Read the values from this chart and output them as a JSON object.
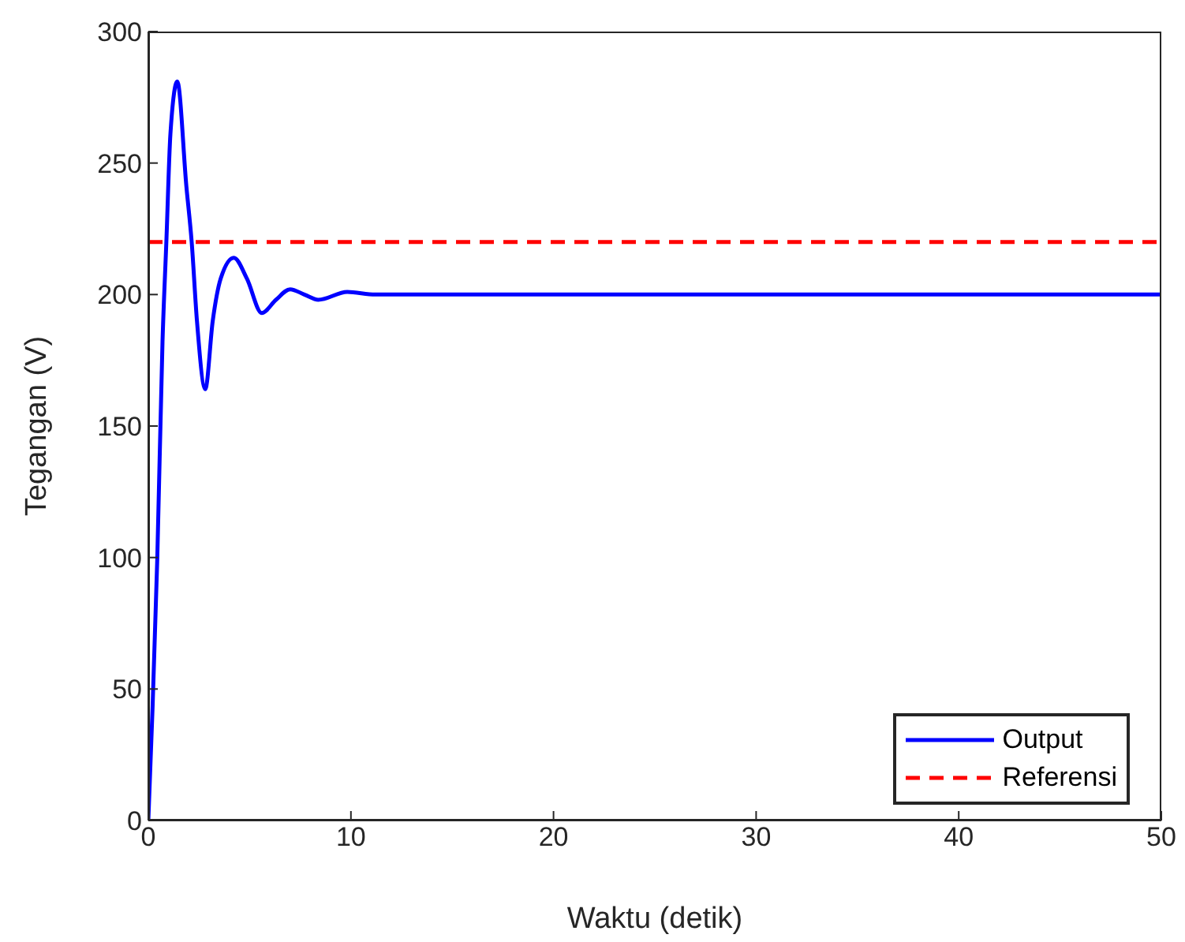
{
  "chart_data": {
    "type": "line",
    "xlabel": "Waktu (detik)",
    "ylabel": "Tegangan (V)",
    "xlim": [
      0,
      50
    ],
    "xticks": [
      0,
      10,
      20,
      30,
      40,
      50
    ],
    "ylim": [
      0,
      300
    ],
    "yticks": [
      0,
      50,
      100,
      150,
      200,
      250,
      300
    ],
    "legend": "bottom right",
    "marker": "none",
    "series": [
      {
        "name": "Output",
        "color": "#0000ff",
        "line_style": "solid",
        "x": [
          0,
          0.21,
          0.44,
          0.7,
          0.89,
          1.09,
          1.43,
          1.88,
          2.14,
          2.4,
          2.81,
          3.18,
          3.57,
          4.22,
          4.87,
          5.6,
          6.3,
          7.0,
          7.7,
          8.39,
          9.82,
          11.2,
          13,
          50
        ],
        "values": [
          0,
          43,
          99,
          182,
          220,
          261,
          281,
          241,
          220,
          190,
          164,
          190,
          206,
          214,
          206,
          193,
          198,
          202,
          200,
          198,
          201,
          200,
          200,
          200
        ]
      },
      {
        "name": "Referensi",
        "color": "#ff0000",
        "line_style": "dashed",
        "x": [
          0,
          50
        ],
        "values": [
          220,
          220
        ]
      }
    ]
  }
}
